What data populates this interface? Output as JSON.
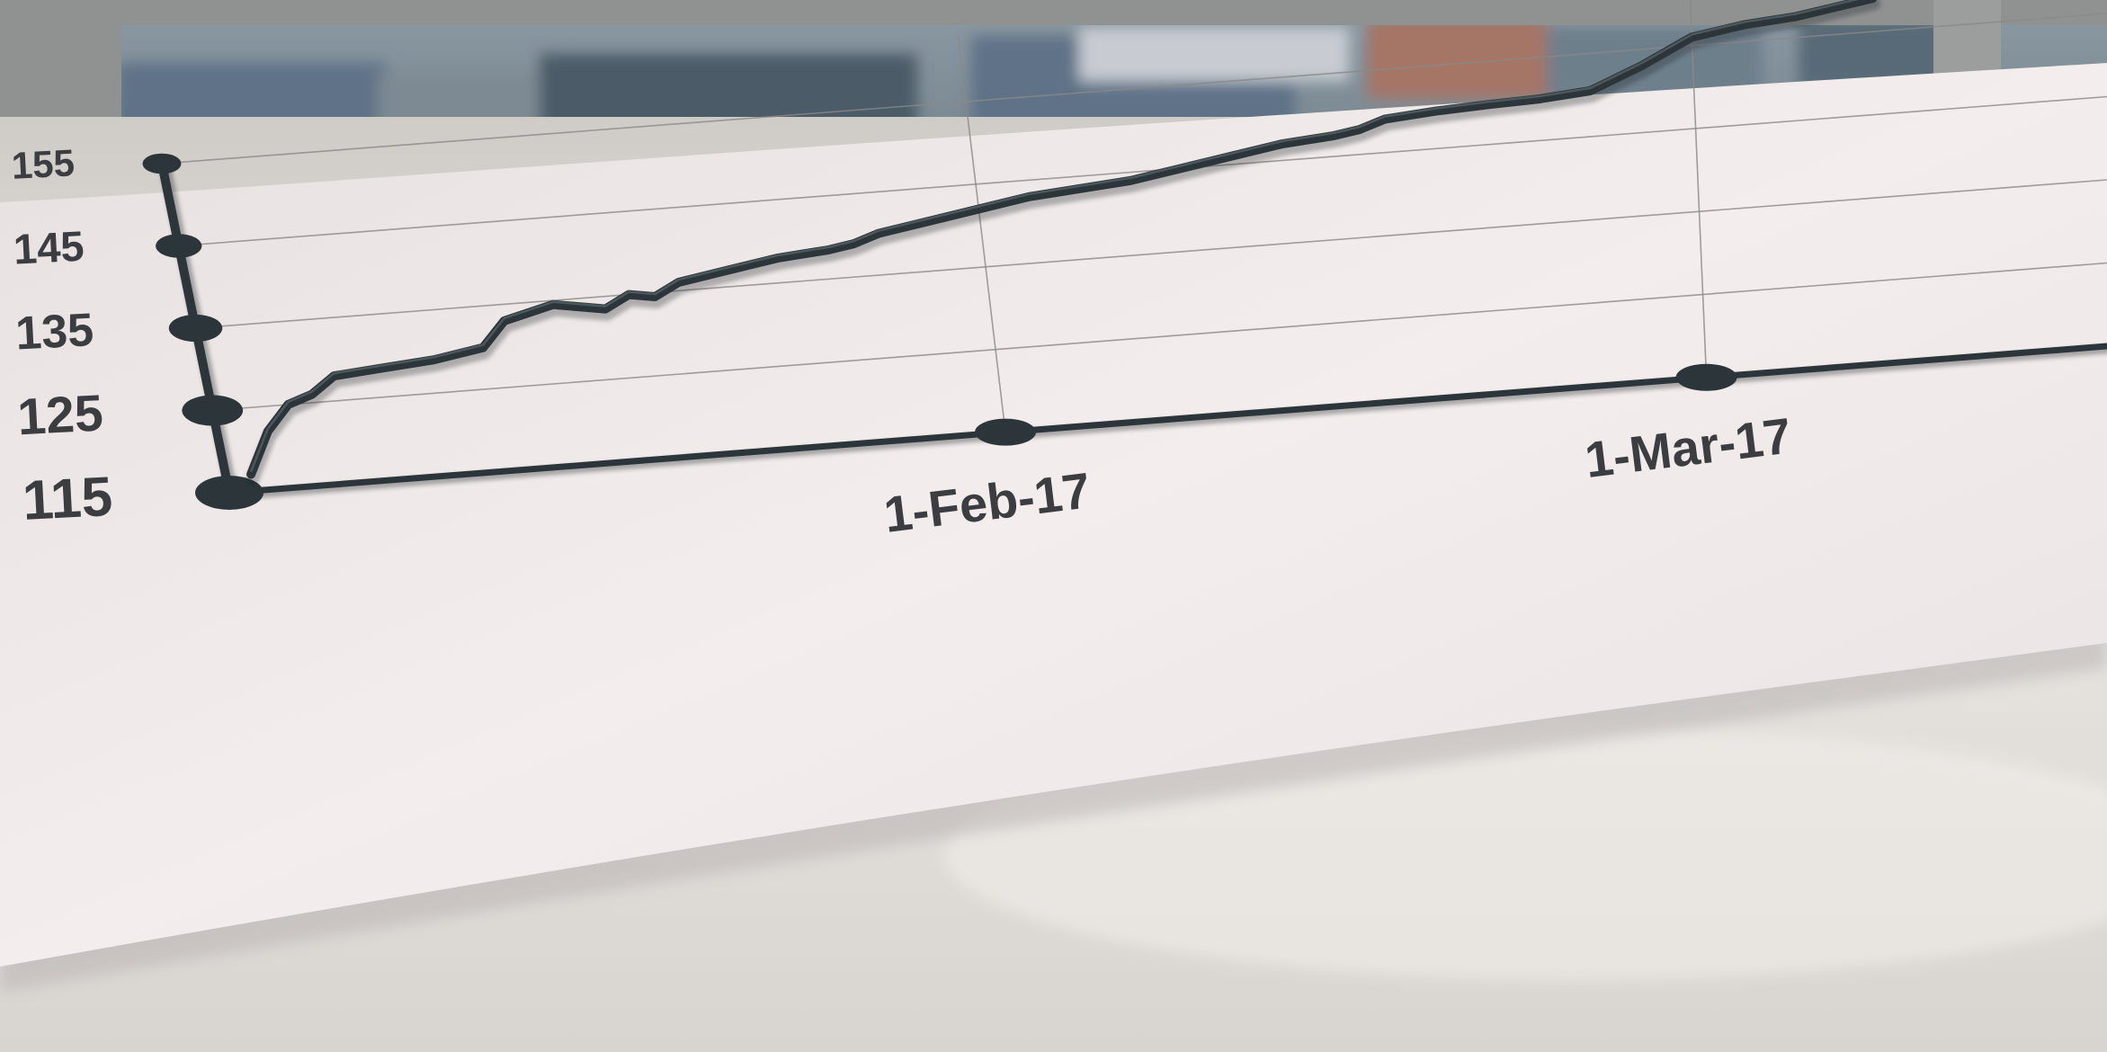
{
  "palette": {
    "window_frame": "#8f9291",
    "city_blue": "#5f7287",
    "city_brick": "#a57566",
    "paper": "#f1ebea",
    "paper_shade": "#ddd6d6",
    "table": "#e7e3df",
    "tactile_line": "#2c363a",
    "grid_line": "#8c8888",
    "label_ink": "#3b3d40"
  },
  "chart_data": {
    "type": "line",
    "title": "",
    "xlabel": "",
    "ylabel": "",
    "ylim": [
      115,
      155
    ],
    "y_ticks": [
      {
        "value": 115,
        "label": "115"
      },
      {
        "value": 125,
        "label": "125"
      },
      {
        "value": 135,
        "label": "135"
      },
      {
        "value": 145,
        "label": "145"
      },
      {
        "value": 155,
        "label": "155"
      }
    ],
    "x_ticks": [
      {
        "value": 31,
        "label": "1-Feb-17"
      },
      {
        "value": 59,
        "label": "1-Mar-17"
      }
    ],
    "series": [
      {
        "x": [
          1,
          2,
          3,
          4,
          5,
          7,
          9,
          11,
          12,
          14,
          16,
          17,
          18,
          19,
          21,
          23,
          25,
          26,
          27,
          29,
          31,
          33,
          35,
          37,
          39,
          41,
          43,
          45,
          46,
          47,
          49,
          51,
          53,
          55,
          57,
          59,
          61,
          63,
          64,
          65,
          66
        ],
        "y": [
          117,
          122,
          125,
          126,
          128,
          128.5,
          129,
          130,
          133,
          134.5,
          133.5,
          135,
          134.5,
          136,
          137,
          138,
          138.5,
          139,
          140,
          141,
          142,
          143,
          143.5,
          144,
          145,
          146,
          147,
          147.5,
          148,
          149,
          149.5,
          149.8,
          150,
          150.5,
          153,
          156,
          157,
          157.5,
          158,
          158.5,
          159
        ]
      }
    ]
  }
}
